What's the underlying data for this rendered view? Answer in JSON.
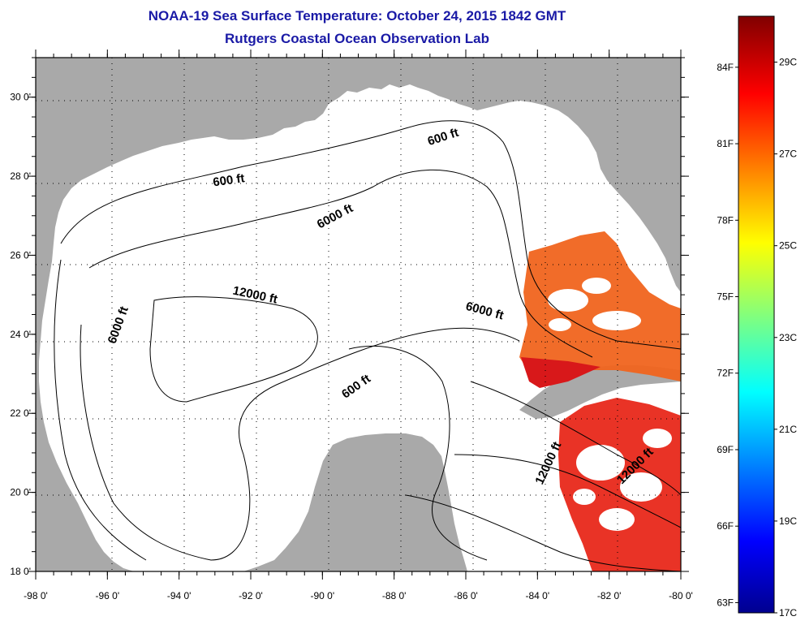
{
  "title": "NOAA-19 Sea Surface Temperature:  October 24, 2015 1842 GMT",
  "subtitle": "Rutgers Coastal Ocean Observation Lab",
  "map": {
    "lon_ticks": [
      "-98 0'",
      "-96 0'",
      "-94 0'",
      "-92 0'",
      "-90 0'",
      "-88 0'",
      "-86 0'",
      "-84 0'",
      "-82 0'",
      "-80 0'"
    ],
    "lat_ticks": [
      "18 0'",
      "20 0'",
      "22 0'",
      "24 0'",
      "26 0'",
      "28 0'",
      "30 0'"
    ],
    "lon_range": [
      -98,
      -80
    ],
    "lat_range": [
      18,
      31
    ],
    "grid": "dotted",
    "contours": [
      {
        "label": "600 ft",
        "lon": -92.6,
        "lat": 27.8
      },
      {
        "label": "600 ft",
        "lon": -86.6,
        "lat": 28.9
      },
      {
        "label": "6000 ft",
        "lon": -89.6,
        "lat": 26.9
      },
      {
        "label": "6000 ft",
        "lon": -95.6,
        "lat": 24.2
      },
      {
        "label": "12000 ft",
        "lon": -91.9,
        "lat": 24.9
      },
      {
        "label": "6000 ft",
        "lon": -85.5,
        "lat": 24.5
      },
      {
        "label": "600 ft",
        "lon": -89.0,
        "lat": 22.6
      },
      {
        "label": "12000 ft",
        "lon": -83.6,
        "lat": 20.7
      },
      {
        "label": "12000 ft",
        "lon": -81.2,
        "lat": 20.6
      }
    ],
    "colors": {
      "land": "#a9a9a9",
      "water": "#ffffff",
      "title": "#1a1aa6"
    }
  },
  "colorbar": {
    "fahrenheit": [
      "63F",
      "66F",
      "69F",
      "72F",
      "75F",
      "78F",
      "81F",
      "84F"
    ],
    "celsius": [
      "17C",
      "19C",
      "21C",
      "23C",
      "25C",
      "27C",
      "29C"
    ],
    "range_c": [
      17,
      30
    ],
    "colormap": "jet"
  }
}
